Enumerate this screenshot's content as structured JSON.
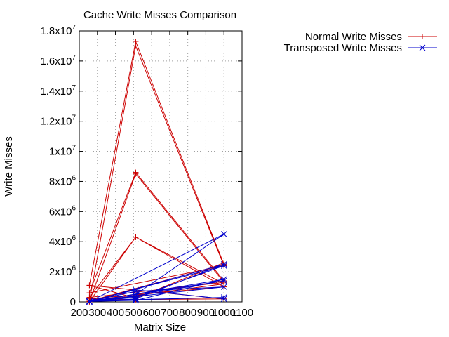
{
  "chart_data": {
    "type": "line",
    "title": "Cache Write Misses Comparison",
    "xlabel": "Matrix Size",
    "ylabel": "Write Misses",
    "xlim": [
      200,
      1100
    ],
    "ylim": [
      0,
      18000000
    ],
    "x_ticks": [
      "200",
      "300",
      "400",
      "500",
      "600",
      "700",
      "800",
      "900",
      "1000",
      "1100"
    ],
    "y_ticks": [
      {
        "base": "0",
        "exp": ""
      },
      {
        "base": "2x10",
        "exp": "6"
      },
      {
        "base": "4x10",
        "exp": "6"
      },
      {
        "base": "6x10",
        "exp": "6"
      },
      {
        "base": "8x10",
        "exp": "6"
      },
      {
        "base": "1x10",
        "exp": "7"
      },
      {
        "base": "1.2x10",
        "exp": "7"
      },
      {
        "base": "1.4x10",
        "exp": "7"
      },
      {
        "base": "1.6x10",
        "exp": "7"
      },
      {
        "base": "1.8x10",
        "exp": "7"
      }
    ],
    "grid": true,
    "legend_position": "top-right",
    "series": [
      {
        "name": "Normal Write Misses",
        "color": "#cc0000",
        "marker": "plus",
        "x": [
          256,
          512,
          1000,
          256,
          512,
          1000,
          256,
          512,
          1000,
          256,
          512,
          1000,
          256,
          512,
          1000,
          256,
          512,
          1000,
          256,
          512,
          1000,
          256,
          512,
          1000
        ],
        "y": [
          1100000,
          17300000,
          2500000,
          50000,
          17000000,
          2400000,
          600000,
          8600000,
          1400000,
          20000,
          8500000,
          1300000,
          300000,
          4300000,
          1200000,
          10000,
          4300000,
          1000000,
          200000,
          150000,
          200000,
          1100000,
          250000,
          2600000
        ]
      },
      {
        "name": "Transposed Write Misses",
        "color": "#0000cc",
        "marker": "cross",
        "x": [
          256,
          512,
          1000,
          256,
          512,
          1000,
          256,
          512,
          1000,
          256,
          512,
          1000,
          256,
          512,
          1000,
          256,
          512,
          1000,
          256,
          512,
          1000,
          256,
          512,
          1000
        ],
        "y": [
          10000,
          500000,
          4500000,
          20000,
          200000,
          2500000,
          15000,
          300000,
          2400000,
          30000,
          100000,
          1500000,
          5000,
          400000,
          1400000,
          40000,
          700000,
          1000000,
          25000,
          150000,
          300000,
          50000,
          800000,
          200000
        ]
      }
    ]
  }
}
